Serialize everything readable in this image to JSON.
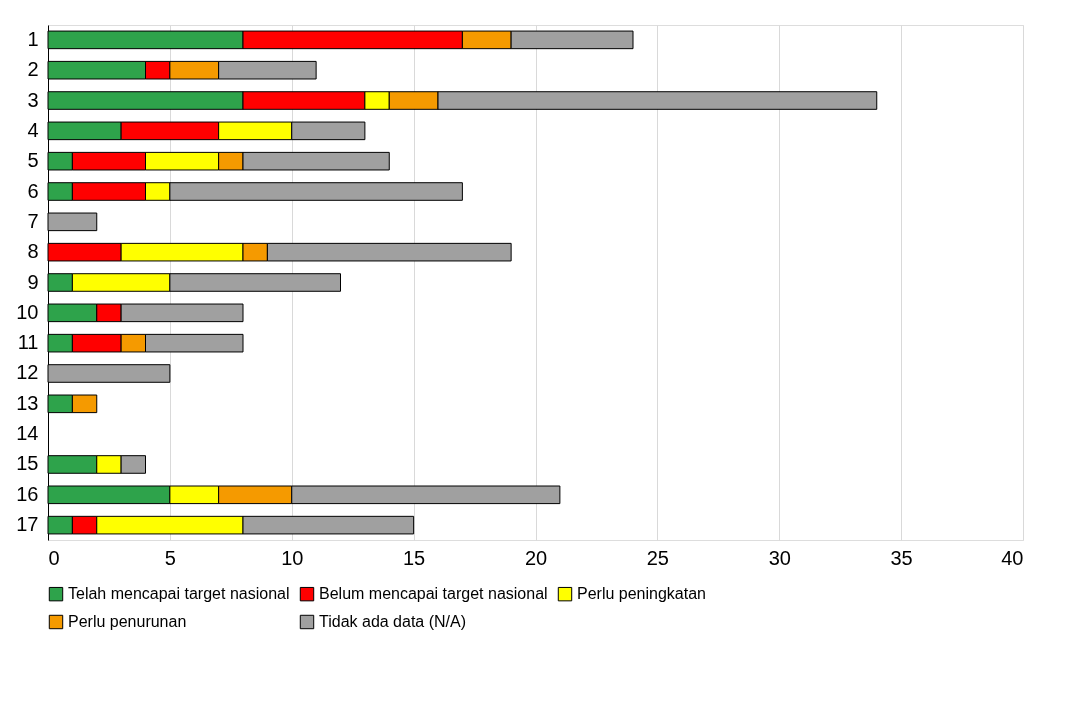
{
  "chart_data": {
    "type": "bar",
    "orientation": "horizontal",
    "stacked": true,
    "categories": [
      "1",
      "2",
      "3",
      "4",
      "5",
      "6",
      "7",
      "8",
      "9",
      "10",
      "11",
      "12",
      "13",
      "14",
      "15",
      "16",
      "17"
    ],
    "series": [
      {
        "name": "Telah mencapai target nasional",
        "color": "#2ea34b",
        "values": [
          8,
          4,
          8,
          3,
          1,
          1,
          null,
          null,
          1,
          2,
          1,
          null,
          1,
          null,
          2,
          5,
          1
        ]
      },
      {
        "name": "Belum mencapai target nasional",
        "color": "#ff0000",
        "values": [
          9,
          1,
          5,
          4,
          3,
          3,
          null,
          3,
          null,
          1,
          2,
          null,
          null,
          null,
          null,
          null,
          1
        ]
      },
      {
        "name": "Perlu peningkatan",
        "color": "#ffff00",
        "values": [
          null,
          null,
          1,
          3,
          3,
          1,
          null,
          5,
          4,
          null,
          null,
          null,
          null,
          null,
          1,
          2,
          6
        ]
      },
      {
        "name": "Perlu penurunan",
        "color": "#f59a00",
        "values": [
          2,
          2,
          2,
          null,
          1,
          null,
          null,
          1,
          null,
          null,
          1,
          null,
          1,
          null,
          null,
          3,
          null
        ]
      },
      {
        "name": "Tidak ada data (N/A)",
        "color": "#a0a0a0",
        "values": [
          5,
          4,
          18,
          3,
          6,
          12,
          2,
          10,
          7,
          5,
          4,
          5,
          null,
          null,
          1,
          11,
          7
        ]
      }
    ],
    "xlim": [
      0,
      40
    ],
    "xticks": [
      0,
      5,
      10,
      15,
      20,
      25,
      30,
      35,
      40
    ],
    "grid": "x",
    "legend": "bottom"
  }
}
